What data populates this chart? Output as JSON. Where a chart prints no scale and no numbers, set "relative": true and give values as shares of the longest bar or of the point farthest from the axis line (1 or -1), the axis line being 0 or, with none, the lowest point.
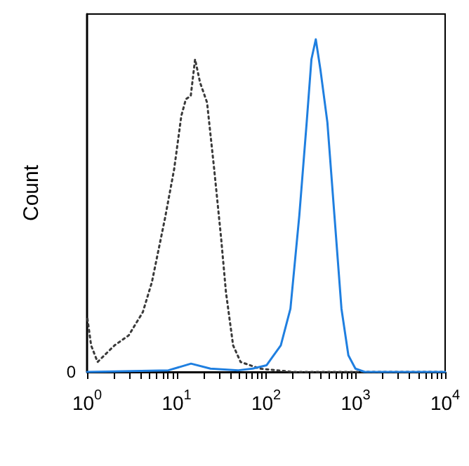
{
  "chart_data": {
    "type": "line",
    "relative": true,
    "ylabel": "Count",
    "xlim": [
      1,
      10000
    ],
    "log": "x",
    "marker": "none",
    "grid": false,
    "xticks": [
      {
        "value": 1,
        "label": "10$^{0}$"
      },
      {
        "value": 2,
        "label": null
      },
      {
        "value": 3,
        "label": null
      },
      {
        "value": 4,
        "label": null
      },
      {
        "value": 5,
        "label": null
      },
      {
        "value": 6,
        "label": null
      },
      {
        "value": 7,
        "label": null
      },
      {
        "value": 8,
        "label": null
      },
      {
        "value": 9,
        "label": null
      },
      {
        "value": 10,
        "label": "10$^{1}$"
      },
      {
        "value": 20,
        "label": null
      },
      {
        "value": 30,
        "label": null
      },
      {
        "value": 40,
        "label": null
      },
      {
        "value": 50,
        "label": null
      },
      {
        "value": 60,
        "label": null
      },
      {
        "value": 70,
        "label": null
      },
      {
        "value": 80,
        "label": null
      },
      {
        "value": 90,
        "label": null
      },
      {
        "value": 100,
        "label": "10$^{2}$"
      },
      {
        "value": 200,
        "label": null
      },
      {
        "value": 300,
        "label": null
      },
      {
        "value": 400,
        "label": null
      },
      {
        "value": 500,
        "label": null
      },
      {
        "value": 600,
        "label": null
      },
      {
        "value": 700,
        "label": null
      },
      {
        "value": 800,
        "label": null
      },
      {
        "value": 900,
        "label": null
      },
      {
        "value": 1000,
        "label": "10$^{3}$"
      },
      {
        "value": 2000,
        "label": null
      },
      {
        "value": 3000,
        "label": null
      },
      {
        "value": 4000,
        "label": null
      },
      {
        "value": 5000,
        "label": null
      },
      {
        "value": 6000,
        "label": null
      },
      {
        "value": 7000,
        "label": null
      },
      {
        "value": 8000,
        "label": null
      },
      {
        "value": 9000,
        "label": null
      },
      {
        "value": 10000,
        "label": "10$^{4}$"
      }
    ],
    "annotations": [
      "0"
    ],
    "series": [
      {
        "color": "#3a3a3a",
        "line_style": "dotted",
        "x": [
          1.01,
          1.11,
          1.31,
          2.03,
          2.92,
          4.2,
          5.3,
          6.1,
          7.4,
          9.4,
          11.3,
          12.7,
          14.4,
          16.1,
          18.3,
          21.9,
          26.3,
          31.5,
          35.6,
          42.8,
          51.9,
          85,
          200,
          10000
        ],
        "values": [
          0.16,
          0.08,
          0.03,
          0.08,
          0.11,
          0.18,
          0.27,
          0.35,
          0.46,
          0.61,
          0.77,
          0.82,
          0.83,
          0.94,
          0.87,
          0.81,
          0.61,
          0.4,
          0.24,
          0.08,
          0.03,
          0.01,
          0,
          0
        ]
      },
      {
        "color": "#1f7fe0",
        "line_style": "solid",
        "x": [
          1,
          8.1,
          14.5,
          23.9,
          49,
          70.5,
          101,
          146,
          187,
          235,
          284,
          321,
          359,
          404,
          484,
          580,
          695,
          830,
          995,
          1270,
          10000
        ],
        "values": [
          0,
          0.005,
          0.025,
          0.01,
          0.005,
          0.01,
          0.02,
          0.08,
          0.19,
          0.47,
          0.75,
          0.94,
          1,
          0.91,
          0.75,
          0.47,
          0.19,
          0.05,
          0.01,
          0,
          0
        ]
      }
    ]
  }
}
